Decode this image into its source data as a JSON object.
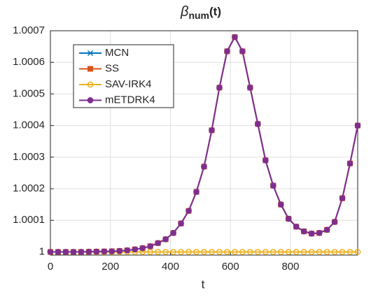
{
  "chart_data": {
    "type": "line",
    "title": {
      "symbol": "β",
      "subscript": "num",
      "suffix": "(t)"
    },
    "x_label": "t",
    "x": [
      0,
      25.6,
      51.2,
      76.8,
      102.4,
      128,
      153.6,
      179.2,
      204.8,
      230.4,
      256,
      281.6,
      307.2,
      332.8,
      358.4,
      384,
      409.6,
      435.2,
      460.8,
      486.4,
      512,
      537.6,
      563.2,
      588.8,
      614.4,
      640,
      665.6,
      691.2,
      716.8,
      742.4,
      768,
      793.6,
      819.2,
      844.8,
      870.4,
      896,
      921.6,
      947.2,
      972.8,
      998.4,
      1024
    ],
    "series": [
      {
        "name": "MCN",
        "color": "#0072BD",
        "marker": "x",
        "values": [
          1,
          1,
          1,
          1,
          1,
          1.0000005,
          1.000001,
          1.0000015,
          1.000002,
          1.000003,
          1.000005,
          1.000008,
          1.000012,
          1.000018,
          1.000028,
          1.00004,
          1.00006,
          1.00009,
          1.00013,
          1.00019,
          1.00027,
          1.000385,
          1.00052,
          1.000635,
          1.00068,
          1.000635,
          1.00052,
          1.000405,
          1.00029,
          1.00021,
          1.00015,
          1.000105,
          1.00008,
          1.000065,
          1.000058,
          1.00006,
          1.00007,
          1.000095,
          1.00017,
          1.00028,
          1.0004
        ]
      },
      {
        "name": "SS",
        "color": "#D95319",
        "marker": "square",
        "values": [
          1,
          1,
          1,
          1,
          1,
          1.0000005,
          1.000001,
          1.0000015,
          1.000002,
          1.000003,
          1.000005,
          1.000008,
          1.000012,
          1.000018,
          1.000028,
          1.00004,
          1.00006,
          1.00009,
          1.00013,
          1.00019,
          1.00027,
          1.000385,
          1.00052,
          1.000635,
          1.00068,
          1.000635,
          1.00052,
          1.000405,
          1.00029,
          1.00021,
          1.00015,
          1.000105,
          1.00008,
          1.000065,
          1.000058,
          1.00006,
          1.00007,
          1.000095,
          1.00017,
          1.00028,
          1.0004
        ]
      },
      {
        "name": "SAV-IRK4",
        "color": "#EDB120",
        "marker": "circle",
        "values": [
          1,
          1,
          1,
          1,
          1,
          1,
          1,
          1,
          1,
          1,
          1,
          1,
          1,
          1,
          1,
          1,
          1,
          1,
          1,
          1,
          1,
          1,
          1,
          1,
          1,
          1,
          1,
          1,
          1,
          1,
          1,
          1,
          1,
          1,
          1,
          1,
          1,
          1,
          1,
          1,
          1
        ]
      },
      {
        "name": "mETDRK4",
        "color": "#7E2F8E",
        "marker": "filled-circle",
        "values": [
          1,
          1,
          1,
          1,
          1,
          1.0000005,
          1.000001,
          1.0000015,
          1.000002,
          1.000003,
          1.000005,
          1.000008,
          1.000012,
          1.000018,
          1.000028,
          1.00004,
          1.00006,
          1.00009,
          1.00013,
          1.00019,
          1.00027,
          1.000385,
          1.00052,
          1.000635,
          1.00068,
          1.000635,
          1.00052,
          1.000405,
          1.00029,
          1.00021,
          1.00015,
          1.000105,
          1.00008,
          1.000065,
          1.000058,
          1.00006,
          1.00007,
          1.000095,
          1.00017,
          1.00028,
          1.0004
        ]
      }
    ],
    "xlim": [
      0,
      1024
    ],
    "ylim": [
      0.99999,
      1.0007
    ],
    "xticks": [
      0,
      200,
      400,
      600,
      800
    ],
    "yticks": [
      1,
      1.0001,
      1.0002,
      1.0003,
      1.0004,
      1.0005,
      1.0006,
      1.0007
    ],
    "grid": true,
    "legend": "top-left"
  }
}
